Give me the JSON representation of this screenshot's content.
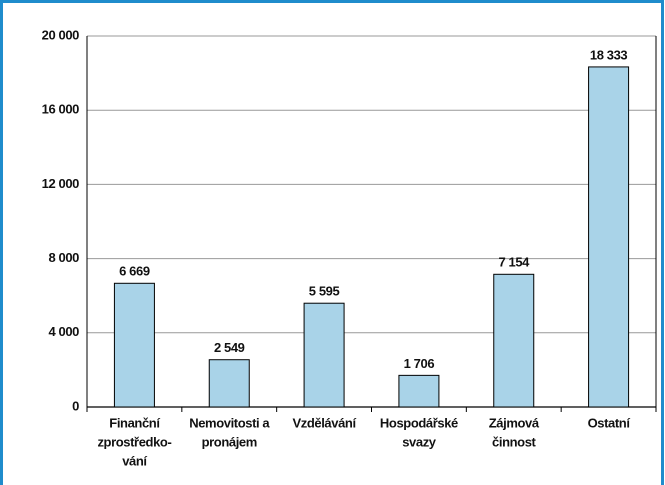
{
  "chart_data": {
    "type": "bar",
    "categories": [
      [
        "Finanční",
        "zprostředko-",
        "vání"
      ],
      [
        "Nemovitosti a",
        "pronájem"
      ],
      [
        "Vzdělávání"
      ],
      [
        "Hospodářské",
        "svazy"
      ],
      [
        "Zájmová",
        "činnost"
      ],
      [
        "Ostatní"
      ]
    ],
    "values": [
      6669,
      2549,
      5595,
      1706,
      7154,
      18333
    ],
    "value_labels": [
      "6 669",
      "2 549",
      "5 595",
      "1 706",
      "7 154",
      "18 333"
    ],
    "color": "#a9d3e8",
    "ylim": [
      0,
      20000
    ],
    "yticks": [
      0,
      {
        "value": 4000,
        "label": "4 000"
      },
      {
        "value": 8000,
        "label": "8 000"
      },
      {
        "value": 12000,
        "label": "12 000"
      },
      {
        "value": 16000,
        "label": "16 000"
      },
      {
        "value": 20000,
        "label": "20 000"
      }
    ],
    "grid": true
  }
}
